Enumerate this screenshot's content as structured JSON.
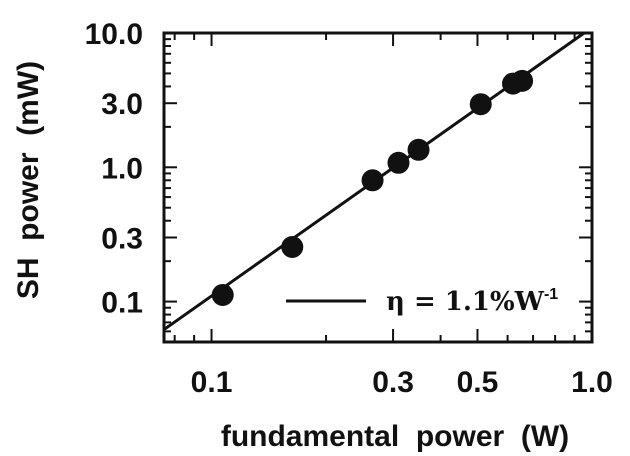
{
  "chart_data": {
    "type": "scatter",
    "xlabel": "fundamental  power  (W)",
    "ylabel": "SH  power  (mW)",
    "xscale": "log",
    "yscale": "log",
    "xlim": [
      0.075,
      1.0
    ],
    "ylim": [
      0.05,
      10.0
    ],
    "x_ticks": [
      {
        "value": 0.1,
        "label": "0.1"
      },
      {
        "value": 0.3,
        "label": "0.3"
      },
      {
        "value": 0.5,
        "label": "0.5"
      },
      {
        "value": 1.0,
        "label": "1.0"
      }
    ],
    "y_ticks": [
      {
        "value": 0.1,
        "label": "0.1"
      },
      {
        "value": 0.3,
        "label": "0.3"
      },
      {
        "value": 1.0,
        "label": "1.0"
      },
      {
        "value": 3.0,
        "label": "3.0"
      },
      {
        "value": 10.0,
        "label": "10.0"
      }
    ],
    "series": [
      {
        "kind": "points",
        "x": [
          0.107,
          0.163,
          0.265,
          0.31,
          0.35,
          0.51,
          0.62,
          0.655
        ],
        "y": [
          0.112,
          0.255,
          0.8,
          1.08,
          1.35,
          2.95,
          4.2,
          4.4
        ]
      },
      {
        "kind": "line",
        "name": "η  =  1.1%W",
        "name_superscript": "-1",
        "x": [
          0.075,
          1.0
        ],
        "y": [
          0.0619,
          11.0
        ]
      }
    ],
    "legend": {
      "position": "bottom-right"
    },
    "grid": false
  }
}
